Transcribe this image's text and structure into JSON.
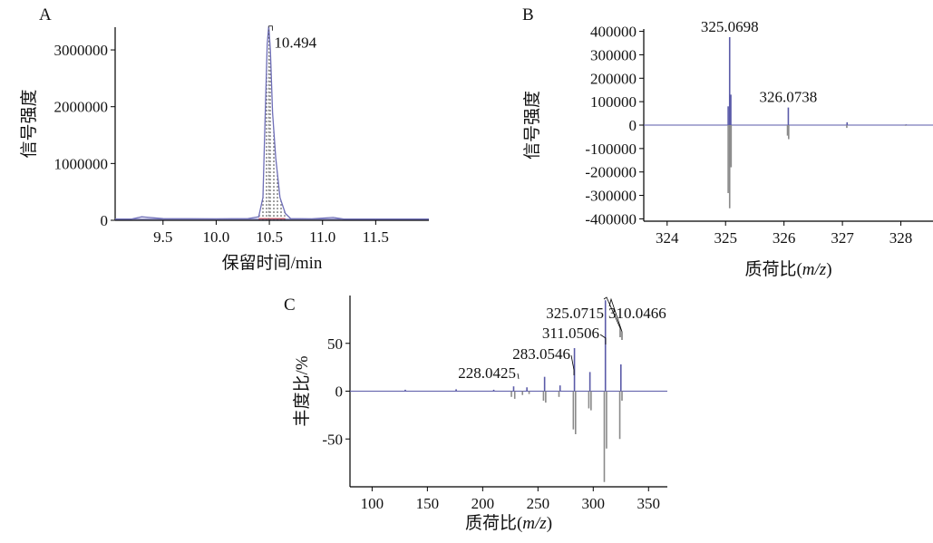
{
  "chart_data": [
    {
      "panel": "A",
      "type": "line",
      "xlabel": "保留时间/min",
      "ylabel": "信号强度",
      "xlim": [
        9.05,
        12.0
      ],
      "ylim": [
        0,
        3400000
      ],
      "xticks": [
        "9.5",
        "10.0",
        "10.5",
        "11.0",
        "11.5"
      ],
      "xtick_values": [
        9.5,
        10.0,
        10.5,
        11.0,
        11.5
      ],
      "yticks": [
        "0",
        "1000000",
        "2000000",
        "3000000"
      ],
      "ytick_values": [
        0,
        1000000,
        2000000,
        3000000
      ],
      "series": [
        {
          "color": "#6f6fb8",
          "x": [
            9.05,
            9.2,
            9.3,
            9.5,
            10.0,
            10.3,
            10.4,
            10.44,
            10.46,
            10.48,
            10.494,
            10.51,
            10.53,
            10.56,
            10.6,
            10.65,
            10.7,
            10.9,
            11.1,
            11.2,
            11.5,
            12.0
          ],
          "y": [
            20000,
            20000,
            60000,
            30000,
            25000,
            30000,
            60000,
            400000,
            1800000,
            3100000,
            3420000,
            3000000,
            1900000,
            1100000,
            400000,
            120000,
            30000,
            25000,
            50000,
            20000,
            20000,
            20000
          ]
        }
      ],
      "annotations": [
        {
          "text": "10.494",
          "x": 10.494,
          "y": 3420000
        }
      ]
    },
    {
      "panel": "B",
      "type": "bar",
      "xlabel": "质荷比(m/z)",
      "xlabel_main": "质荷比(",
      "xlabel_italic": "m/z",
      "xlabel_end": ")",
      "ylabel": "信号强度",
      "xlim": [
        323.6,
        328.55
      ],
      "ylim": [
        -410000,
        410000
      ],
      "xticks": [
        "324",
        "325",
        "326",
        "327",
        "328"
      ],
      "xtick_values": [
        324,
        325,
        326,
        327,
        328
      ],
      "yticks": [
        "400000",
        "300000",
        "200000",
        "100000",
        "0",
        "-100000",
        "-200000",
        "-300000",
        "-400000"
      ],
      "ytick_values": [
        400000,
        300000,
        200000,
        100000,
        0,
        -100000,
        -200000,
        -300000,
        -400000
      ],
      "series": [
        {
          "color": "#5a5aa8",
          "x": [
            325.045,
            325.07,
            325.09,
            326.074,
            327.08,
            328.09
          ],
          "y": [
            80000,
            375000,
            130000,
            75000,
            12000,
            3000
          ]
        },
        {
          "color": "#8a8a8a",
          "x": [
            325.045,
            325.07,
            325.095,
            326.06,
            326.08,
            327.075,
            328.08
          ],
          "y": [
            -290000,
            -355000,
            -180000,
            -45000,
            -60000,
            -12000,
            -3000
          ]
        }
      ],
      "annotations": [
        {
          "text": "325.0698",
          "x": 325.07,
          "y": 375000
        },
        {
          "text": "326.0738",
          "x": 326.074,
          "y": 75000
        }
      ]
    },
    {
      "panel": "C",
      "type": "bar",
      "xlabel": "质荷比(m/z)",
      "xlabel_main": "质荷比(",
      "xlabel_italic": "m/z",
      "xlabel_end": ")",
      "ylabel": "丰度比/%",
      "xlim": [
        80,
        367
      ],
      "ylim": [
        -100,
        100
      ],
      "xticks": [
        "100",
        "150",
        "200",
        "250",
        "300",
        "350"
      ],
      "xtick_values": [
        100,
        150,
        200,
        250,
        300,
        350
      ],
      "yticks": [
        "50",
        "0",
        "-50"
      ],
      "ytick_values": [
        50,
        0,
        -50
      ],
      "series": [
        {
          "color": "#5a5aa8",
          "x": [
            130,
            176,
            210,
            228,
            240,
            256,
            270,
            283,
            297,
            311,
            325
          ],
          "y": [
            1.5,
            2,
            1.5,
            5,
            4,
            15,
            6,
            45,
            20,
            95,
            28
          ]
        },
        {
          "color": "#8a8a8a",
          "x": [
            226,
            229,
            236,
            242,
            255,
            257,
            269,
            282,
            284,
            296,
            298,
            310,
            312,
            324,
            326
          ],
          "y": [
            -6,
            -8,
            -4,
            -3,
            -10,
            -12,
            -6,
            -40,
            -45,
            -18,
            -20,
            -95,
            -60,
            -50,
            -10
          ]
        }
      ],
      "annotations": [
        {
          "text": "228.0425",
          "x": 228,
          "y": 5
        },
        {
          "text": "283.0546",
          "x": 283,
          "y": 45
        },
        {
          "text": "311.0506",
          "x": 311,
          "y": 95
        },
        {
          "text": "325.0715",
          "x": 325,
          "y": 28
        },
        {
          "text": "310.0466",
          "x": 310,
          "y": -95
        }
      ]
    }
  ]
}
